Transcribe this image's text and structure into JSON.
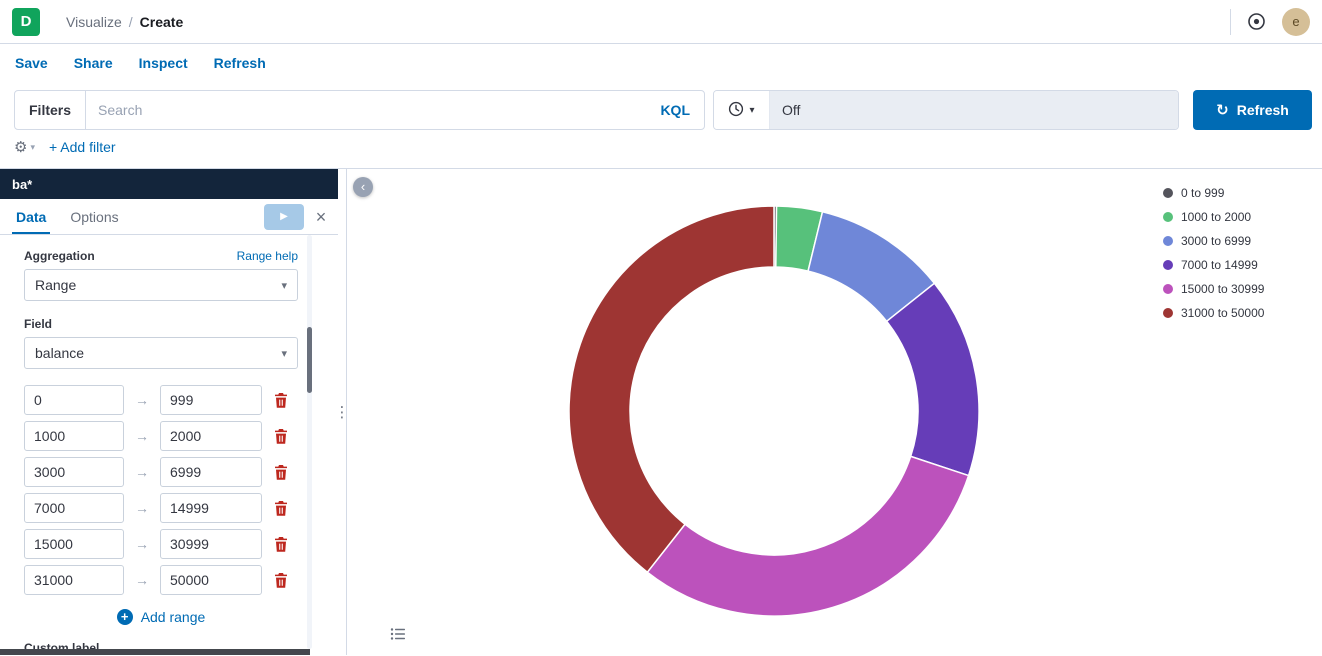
{
  "app": {
    "logo_initial": "D",
    "breadcrumb": {
      "section": "Visualize",
      "separator": "/",
      "current": "Create"
    },
    "avatar_initial": "e"
  },
  "menu": {
    "items": [
      "Save",
      "Share",
      "Inspect",
      "Refresh"
    ]
  },
  "querybar": {
    "filters_label": "Filters",
    "search_placeholder": "Search",
    "kql_label": "KQL",
    "time_display": "Off",
    "refresh_label": "Refresh"
  },
  "filterbar": {
    "add_filter_label": "+ Add filter"
  },
  "editor": {
    "index_pattern": "ba*",
    "tabs": {
      "data": "Data",
      "options": "Options"
    },
    "aggregation_label": "Aggregation",
    "range_help_label": "Range help",
    "aggregation_value": "Range",
    "field_label": "Field",
    "field_value": "balance",
    "ranges": [
      {
        "from": "0",
        "to": "999"
      },
      {
        "from": "1000",
        "to": "2000"
      },
      {
        "from": "3000",
        "to": "6999"
      },
      {
        "from": "7000",
        "to": "14999"
      },
      {
        "from": "15000",
        "to": "30999"
      },
      {
        "from": "31000",
        "to": "50000"
      }
    ],
    "add_range_label": "Add range",
    "custom_label_label": "Custom label"
  },
  "chart_data": {
    "type": "pie",
    "subtype": "donut",
    "categories": [
      "0 to 999",
      "1000 to 2000",
      "3000 to 6999",
      "7000 to 14999",
      "15000 to 30999",
      "31000 to 50000"
    ],
    "values": [
      0.2,
      3.6,
      10.5,
      15.8,
      30.5,
      39.4
    ],
    "values_are_percent_estimates": true,
    "colors": [
      "#54545C",
      "#57C17B",
      "#6F87D8",
      "#663DB8",
      "#BC52BC",
      "#9E3533"
    ],
    "legend_position": "right",
    "inner_radius_ratio": 0.7,
    "start_angle": "top_clockwise",
    "slice_border_color": "#FFFFFF"
  },
  "icons": {
    "caret_down": "▾",
    "arrow_right": "→",
    "play": "▶",
    "close": "×",
    "chevron_left": "‹",
    "refresh": "↻",
    "gear": "⚙",
    "plus": "+",
    "drag_dots": "⋮"
  },
  "colors": {
    "primary": "#006BB4",
    "brand_green": "#10A45C",
    "danger": "#BD271E",
    "editor_header": "#13253B",
    "time_display_bg": "#E9EDF3"
  }
}
